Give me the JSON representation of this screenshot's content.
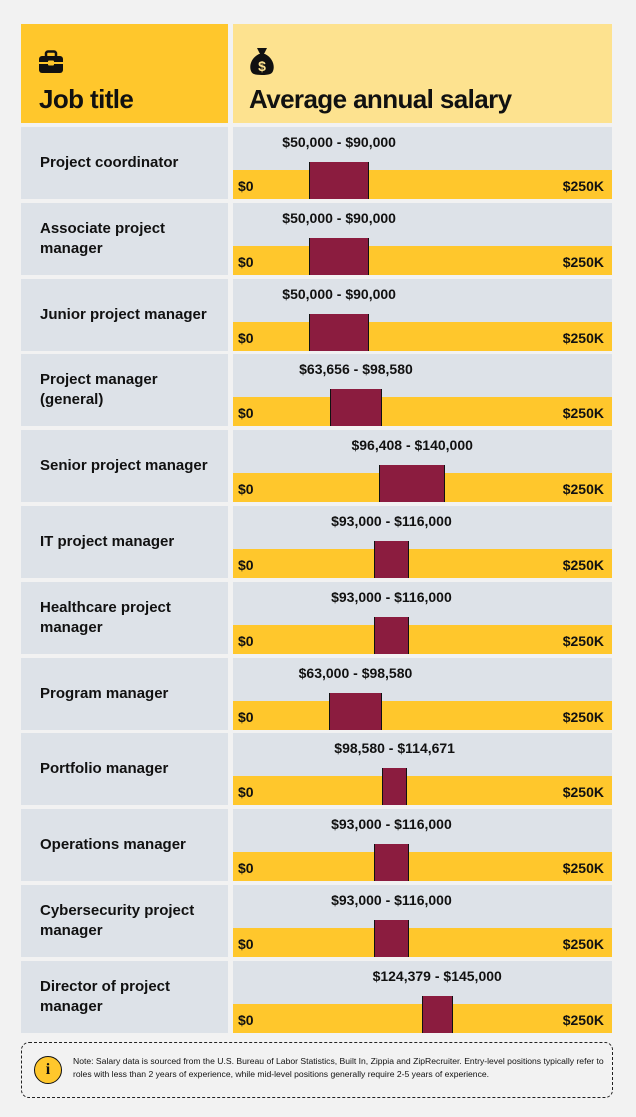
{
  "header": {
    "job_title_label": "Job title",
    "salary_label": "Average annual salary",
    "job_icon": "briefcase-icon",
    "salary_icon": "money-bag-icon"
  },
  "colors": {
    "track": "#ffc72c",
    "range": "#8b1c3f",
    "row_bg": "#dde2e8",
    "header_left": "#ffc72c",
    "header_right": "#fde28f"
  },
  "chart_data": {
    "type": "bar",
    "subtype": "range",
    "title": "Average annual salary",
    "xlim": [
      0,
      250000
    ],
    "axis_min_label": "$0",
    "axis_max_label": "$250K",
    "rows": [
      {
        "title": "Project coordinator",
        "low": 50000,
        "high": 90000,
        "label": "$50,000 - $90,000"
      },
      {
        "title": "Associate project manager",
        "low": 50000,
        "high": 90000,
        "label": "$50,000 - $90,000"
      },
      {
        "title": "Junior project manager",
        "low": 50000,
        "high": 90000,
        "label": "$50,000 - $90,000"
      },
      {
        "title": "Project manager (general)",
        "low": 63656,
        "high": 98580,
        "label": "$63,656 - $98,580"
      },
      {
        "title": "Senior project manager",
        "low": 96408,
        "high": 140000,
        "label": "$96,408 - $140,000"
      },
      {
        "title": "IT project manager",
        "low": 93000,
        "high": 116000,
        "label": "$93,000 - $116,000"
      },
      {
        "title": "Healthcare project manager",
        "low": 93000,
        "high": 116000,
        "label": "$93,000 - $116,000"
      },
      {
        "title": "Program manager",
        "low": 63000,
        "high": 98580,
        "label": "$63,000 - $98,580"
      },
      {
        "title": "Portfolio manager",
        "low": 98580,
        "high": 114671,
        "label": "$98,580 - $114,671"
      },
      {
        "title": "Operations manager",
        "low": 93000,
        "high": 116000,
        "label": "$93,000 - $116,000"
      },
      {
        "title": "Cybersecurity project manager",
        "low": 93000,
        "high": 116000,
        "label": "$93,000 - $116,000"
      },
      {
        "title": "Director of project manager",
        "low": 124379,
        "high": 145000,
        "label": "$124,379 - $145,000"
      }
    ]
  },
  "note": {
    "icon": "info-icon",
    "icon_glyph": "i",
    "text": "Note: Salary data is sourced from the U.S. Bureau of Labor Statistics, Built In, Zippia and ZipRecruiter. Entry-level positions typically refer to roles with less than 2 years of experience, while mid-level positions generally require 2-5 years of experience."
  }
}
